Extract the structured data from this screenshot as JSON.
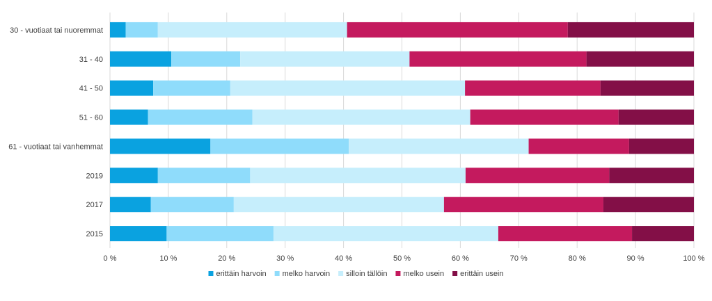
{
  "chart_data": {
    "type": "bar",
    "orientation": "horizontal",
    "stacked": "percent",
    "categories": [
      "30 - vuotiaat tai nuoremmat",
      "31 - 40",
      "41 - 50",
      "51 - 60",
      "61 - vuotiaat tai vanhemmat",
      "2019",
      "2017",
      "2015"
    ],
    "series": [
      {
        "name": "erittäin harvoin",
        "color": "#0aa2e0",
        "values": [
          2.7,
          10.5,
          7.4,
          6.5,
          17.2,
          8.2,
          7.0,
          9.7
        ]
      },
      {
        "name": "melko harvoin",
        "color": "#8fdcfb",
        "values": [
          5.5,
          11.8,
          13.2,
          17.9,
          23.7,
          15.8,
          14.2,
          18.3
        ]
      },
      {
        "name": "silloin tällöin",
        "color": "#c6eefc",
        "values": [
          32.4,
          29.0,
          40.2,
          37.3,
          30.8,
          36.9,
          36.0,
          38.5
        ]
      },
      {
        "name": "melko usein",
        "color": "#c41a5e",
        "values": [
          37.8,
          30.3,
          23.2,
          25.4,
          17.2,
          24.6,
          27.3,
          22.9
        ]
      },
      {
        "name": "erittäin usein",
        "color": "#830f47",
        "values": [
          21.6,
          18.4,
          16.0,
          12.9,
          11.1,
          14.5,
          15.5,
          10.6
        ]
      }
    ],
    "x_ticks": [
      "0 %",
      "10 %",
      "20 %",
      "30 %",
      "40 %",
      "50 %",
      "60 %",
      "70 %",
      "80 %",
      "90 %",
      "100 %"
    ],
    "xlim": [
      0,
      100
    ],
    "grid": true,
    "legend_position": "bottom"
  }
}
